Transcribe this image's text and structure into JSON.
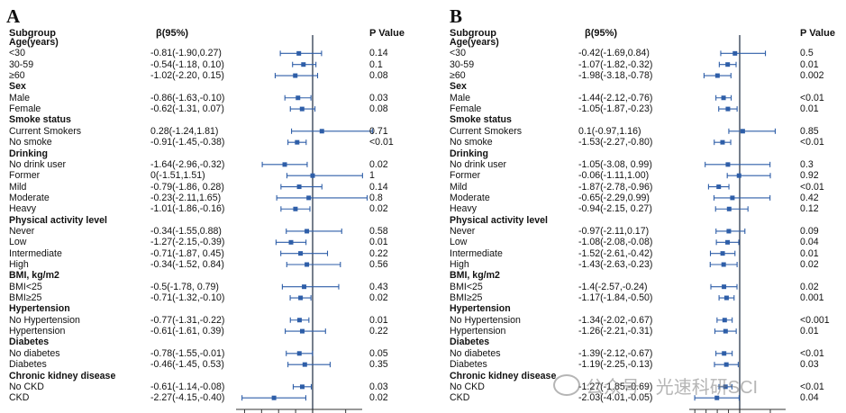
{
  "watermark": "公众号 · 光速科研SCI",
  "chart_data": [
    {
      "type": "forest",
      "panel": "A",
      "headers": {
        "subgroup": "Subgroup",
        "beta": "β(95%)",
        "p": "P Value"
      },
      "xlim": [
        -4.5,
        1.5
      ],
      "reference_line": 0,
      "color": "#2e5ea8",
      "rows": [
        {
          "label": "Age(years)",
          "group": true
        },
        {
          "label": "<30",
          "beta": "-0.81(-1.90,0.27)",
          "p": "0.14",
          "est": -0.81,
          "lo": -1.9,
          "hi": 0.27
        },
        {
          "label": "30-59",
          "beta": "-0.54(-1.18, 0.10)",
          "p": "0.1",
          "est": -0.54,
          "lo": -1.18,
          "hi": 0.1
        },
        {
          "label": "≥60",
          "beta": "-1.02(-2.20, 0.15)",
          "p": "0.08",
          "est": -1.02,
          "lo": -2.2,
          "hi": 0.15
        },
        {
          "label": "Sex",
          "group": true
        },
        {
          "label": "Male",
          "beta": "-0.86(-1.63,-0.10)",
          "p": "0.03",
          "est": -0.86,
          "lo": -1.63,
          "hi": -0.1
        },
        {
          "label": "Female",
          "beta": "-0.62(-1.31, 0.07)",
          "p": "0.08",
          "est": -0.62,
          "lo": -1.31,
          "hi": 0.07
        },
        {
          "label": "Smoke status",
          "group": true
        },
        {
          "label": "Current Smokers",
          "beta": "0.28(-1.24,1.81)",
          "p": "0.71",
          "est": 0.28,
          "lo": -1.24,
          "hi": 1.81
        },
        {
          "label": "No smoke",
          "beta": "-0.91(-1.45,-0.38)",
          "p": "<0.01",
          "est": -0.91,
          "lo": -1.45,
          "hi": -0.38
        },
        {
          "label": "Drinking",
          "group": true
        },
        {
          "label": "No drink user",
          "beta": "-1.64(-2.96,-0.32)",
          "p": "0.02",
          "est": -1.64,
          "lo": -2.96,
          "hi": -0.32
        },
        {
          "label": "Former",
          "beta": "0(-1.51,1.51)",
          "p": "1",
          "est": 0,
          "lo": -1.51,
          "hi": 1.51
        },
        {
          "label": "Mild",
          "beta": "-0.79(-1.86, 0.28)",
          "p": "0.14",
          "est": -0.79,
          "lo": -1.86,
          "hi": 0.28
        },
        {
          "label": "Moderate",
          "beta": "-0.23(-2.11,1.65)",
          "p": "0.8",
          "est": -0.23,
          "lo": -2.11,
          "hi": 1.65
        },
        {
          "label": "Heavy",
          "beta": "-1.01(-1.86,-0.16)",
          "p": "0.02",
          "est": -1.01,
          "lo": -1.86,
          "hi": -0.16
        },
        {
          "label": "Physical activity level",
          "group": true
        },
        {
          "label": "Never",
          "beta": "-0.34(-1.55,0.88)",
          "p": "0.58",
          "est": -0.34,
          "lo": -1.55,
          "hi": 0.88
        },
        {
          "label": "Low",
          "beta": "-1.27(-2.15,-0.39)",
          "p": "0.01",
          "est": -1.27,
          "lo": -2.15,
          "hi": -0.39
        },
        {
          "label": "Intermediate",
          "beta": "-0.71(-1.87, 0.45)",
          "p": "0.22",
          "est": -0.71,
          "lo": -1.87,
          "hi": 0.45
        },
        {
          "label": "High",
          "beta": "-0.34(-1.52, 0.84)",
          "p": "0.56",
          "est": -0.34,
          "lo": -1.52,
          "hi": 0.84
        },
        {
          "label": "BMI, kg/m2",
          "group": true
        },
        {
          "label": "BMI<25",
          "beta": "-0.5(-1.78, 0.79)",
          "p": "0.43",
          "est": -0.5,
          "lo": -1.78,
          "hi": 0.79
        },
        {
          "label": "BMI≥25",
          "beta": "-0.71(-1.32,-0.10)",
          "p": "0.02",
          "est": -0.71,
          "lo": -1.32,
          "hi": -0.1
        },
        {
          "label": "Hypertension",
          "group": true
        },
        {
          "label": "No Hypertension",
          "beta": "-0.77(-1.31,-0.22)",
          "p": "0.01",
          "est": -0.77,
          "lo": -1.31,
          "hi": -0.22
        },
        {
          "label": "Hypertension",
          "beta": "-0.61(-1.61, 0.39)",
          "p": "0.22",
          "est": -0.61,
          "lo": -1.61,
          "hi": 0.39
        },
        {
          "label": "Diabetes",
          "group": true
        },
        {
          "label": "No diabetes",
          "beta": "-0.78(-1.55,-0.01)",
          "p": "0.05",
          "est": -0.78,
          "lo": -1.55,
          "hi": -0.01
        },
        {
          "label": "Diabetes",
          "beta": "-0.46(-1.45, 0.53)",
          "p": "0.35",
          "est": -0.46,
          "lo": -1.45,
          "hi": 0.53
        },
        {
          "label": "Chronic kidney disease",
          "group": true
        },
        {
          "label": "No CKD",
          "beta": "-0.61(-1.14,-0.08)",
          "p": "0.03",
          "est": -0.61,
          "lo": -1.14,
          "hi": -0.08
        },
        {
          "label": "CKD",
          "beta": "-2.27(-4.15,-0.40)",
          "p": "0.02",
          "est": -2.27,
          "lo": -4.15,
          "hi": -0.4
        }
      ]
    },
    {
      "type": "forest",
      "panel": "B",
      "headers": {
        "subgroup": "Subgroup",
        "beta": "β(95%)",
        "p": "P Value"
      },
      "xlim": [
        -4.5,
        1.5
      ],
      "reference_line": 0,
      "color": "#2e5ea8",
      "rows": [
        {
          "label": "Age(years)",
          "group": true
        },
        {
          "label": "<30",
          "beta": "-0.42(-1.69,0.84)",
          "p": "0.5",
          "est": -0.42,
          "lo": -1.69,
          "hi": 0.84
        },
        {
          "label": "30-59",
          "beta": "-1.07(-1.82,-0.32)",
          "p": "0.01",
          "est": -1.07,
          "lo": -1.82,
          "hi": -0.32
        },
        {
          "label": "≥60",
          "beta": "-1.98(-3.18,-0.78)",
          "p": "0.002",
          "est": -1.98,
          "lo": -3.18,
          "hi": -0.78
        },
        {
          "label": "Sex",
          "group": true
        },
        {
          "label": "Male",
          "beta": "-1.44(-2.12,-0.76)",
          "p": "<0.01",
          "est": -1.44,
          "lo": -2.12,
          "hi": -0.76
        },
        {
          "label": "Female",
          "beta": "-1.05(-1.87,-0.23)",
          "p": "0.01",
          "est": -1.05,
          "lo": -1.87,
          "hi": -0.23
        },
        {
          "label": "Smoke status",
          "group": true
        },
        {
          "label": "Current Smokers",
          "beta": "0.1(-0.97,1.16)",
          "p": "0.85",
          "est": 0.1,
          "lo": -0.97,
          "hi": 1.16
        },
        {
          "label": "No smoke",
          "beta": "-1.53(-2.27,-0.80)",
          "p": "<0.01",
          "est": -1.53,
          "lo": -2.27,
          "hi": -0.8
        },
        {
          "label": "Drinking",
          "group": true
        },
        {
          "label": "No drink user",
          "beta": "-1.05(-3.08, 0.99)",
          "p": "0.3",
          "est": -1.05,
          "lo": -3.08,
          "hi": 0.99
        },
        {
          "label": "Former",
          "beta": "-0.06(-1.11,1.00)",
          "p": "0.92",
          "est": -0.06,
          "lo": -1.11,
          "hi": 1.0
        },
        {
          "label": "Mild",
          "beta": "-1.87(-2.78,-0.96)",
          "p": "<0.01",
          "est": -1.87,
          "lo": -2.78,
          "hi": -0.96
        },
        {
          "label": "Moderate",
          "beta": "-0.65(-2.29,0.99)",
          "p": "0.42",
          "est": -0.65,
          "lo": -2.29,
          "hi": 0.99
        },
        {
          "label": "Heavy",
          "beta": "-0.94(-2.15, 0.27)",
          "p": "0.12",
          "est": -0.94,
          "lo": -2.15,
          "hi": 0.27
        },
        {
          "label": "Physical activity level",
          "group": true
        },
        {
          "label": "Never",
          "beta": "-0.97(-2.11,0.17)",
          "p": "0.09",
          "est": -0.97,
          "lo": -2.11,
          "hi": 0.17
        },
        {
          "label": "Low",
          "beta": "-1.08(-2.08,-0.08)",
          "p": "0.04",
          "est": -1.08,
          "lo": -2.08,
          "hi": -0.08
        },
        {
          "label": "Intermediate",
          "beta": "-1.52(-2.61,-0.42)",
          "p": "0.01",
          "est": -1.52,
          "lo": -2.61,
          "hi": -0.42
        },
        {
          "label": "High",
          "beta": "-1.43(-2.63,-0.23)",
          "p": "0.02",
          "est": -1.43,
          "lo": -2.63,
          "hi": -0.23
        },
        {
          "label": "BMI, kg/m2",
          "group": true
        },
        {
          "label": "BMI<25",
          "beta": "-1.4(-2.57,-0.24)",
          "p": "0.02",
          "est": -1.4,
          "lo": -2.57,
          "hi": -0.24
        },
        {
          "label": "BMI≥25",
          "beta": "-1.17(-1.84,-0.50)",
          "p": "0.001",
          "est": -1.17,
          "lo": -1.84,
          "hi": -0.5
        },
        {
          "label": "Hypertension",
          "group": true
        },
        {
          "label": "No Hypertension",
          "beta": "-1.34(-2.02,-0.67)",
          "p": "<0.001",
          "est": -1.34,
          "lo": -2.02,
          "hi": -0.67
        },
        {
          "label": "Hypertension",
          "beta": "-1.26(-2.21,-0.31)",
          "p": "0.01",
          "est": -1.26,
          "lo": -2.21,
          "hi": -0.31
        },
        {
          "label": "Diabetes",
          "group": true
        },
        {
          "label": "No diabetes",
          "beta": "-1.39(-2.12,-0.67)",
          "p": "<0.01",
          "est": -1.39,
          "lo": -2.12,
          "hi": -0.67
        },
        {
          "label": "Diabetes",
          "beta": "-1.19(-2.25,-0.13)",
          "p": "0.03",
          "est": -1.19,
          "lo": -2.25,
          "hi": -0.13
        },
        {
          "label": "Chronic kidney disease",
          "group": true
        },
        {
          "label": "No CKD",
          "beta": "-1.27(-1.85,-0.69)",
          "p": "<0.01",
          "est": -1.27,
          "lo": -1.85,
          "hi": -0.69
        },
        {
          "label": "CKD",
          "beta": "-2.03(-4.01,-0.05)",
          "p": "0.04",
          "est": -2.03,
          "lo": -4.01,
          "hi": -0.05
        }
      ]
    }
  ]
}
